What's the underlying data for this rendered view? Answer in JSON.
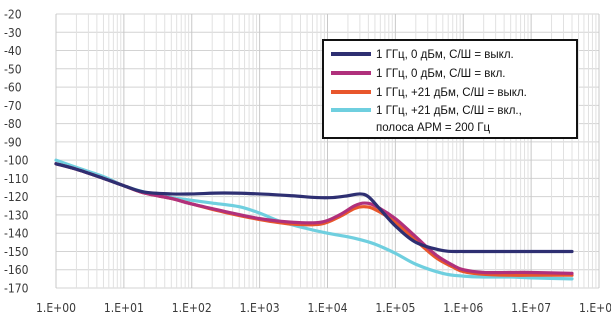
{
  "chart_data": {
    "type": "line",
    "title": "",
    "xlabel": "",
    "ylabel": "",
    "x_scale": "log",
    "xlim": [
      1,
      100000000
    ],
    "ylim": [
      -170,
      -20
    ],
    "grid": true,
    "legend_position": "top-right",
    "x_ticks": [
      1,
      10,
      100,
      1000,
      10000,
      100000,
      1000000,
      10000000,
      100000000
    ],
    "x_tick_labels": [
      "1.E+00",
      "1.E+01",
      "1.E+02",
      "1.E+03",
      "1.E+04",
      "1.E+05",
      "1.E+06",
      "1.E+07",
      "1.E+08"
    ],
    "y_ticks": [
      -20,
      -30,
      -40,
      -50,
      -60,
      -70,
      -80,
      -90,
      -100,
      -110,
      -120,
      -130,
      -140,
      -150,
      -160,
      -170
    ],
    "y_tick_labels": [
      "-20",
      "-30",
      "-40",
      "-50",
      "-60",
      "-70",
      "-80",
      "-90",
      "-100",
      "-110",
      "-120",
      "-130",
      "-140",
      "-150",
      "-160",
      "-170"
    ],
    "series": [
      {
        "name": "1 ГГц, 0 дБм, С/Ш = выкл.",
        "color": "#2e2f72",
        "x": [
          1,
          2,
          5,
          10,
          20,
          50,
          100,
          300,
          1000,
          3000,
          7000,
          12000,
          20000,
          30000,
          40000,
          60000,
          100000,
          200000,
          500000,
          1000000,
          2000000,
          5000000,
          10000000,
          40000000
        ],
        "y": [
          -102,
          -105,
          -110,
          -114,
          -117.5,
          -118.5,
          -118.5,
          -118,
          -118.5,
          -119.5,
          -120.5,
          -120.5,
          -119.5,
          -118.5,
          -120,
          -127,
          -136,
          -145,
          -149.5,
          -150,
          -150,
          -150,
          -150,
          -150
        ]
      },
      {
        "name": "1 ГГц, 0 дБм, С/Ш = вкл.",
        "color": "#b0307c",
        "x": [
          1,
          2,
          5,
          10,
          20,
          50,
          100,
          300,
          1000,
          3000,
          8000,
          15000,
          25000,
          35000,
          50000,
          100000,
          200000,
          400000,
          700000,
          1000000,
          2000000,
          5000000,
          10000000,
          40000000
        ],
        "y": [
          -102,
          -105,
          -110,
          -114,
          -118,
          -121,
          -124,
          -128,
          -132,
          -134,
          -134,
          -130,
          -125,
          -123.5,
          -125,
          -132,
          -142,
          -152,
          -157.5,
          -160,
          -161.5,
          -161.5,
          -161.5,
          -162
        ]
      },
      {
        "name": "1 ГГц, +21 дБм, С/Ш  = выкл.",
        "color": "#e8562c",
        "x": [
          1,
          2,
          5,
          10,
          20,
          50,
          100,
          300,
          1000,
          3000,
          8000,
          15000,
          25000,
          35000,
          50000,
          100000,
          200000,
          400000,
          700000,
          1000000,
          2000000,
          5000000,
          10000000,
          40000000
        ],
        "y": [
          -102,
          -105,
          -110,
          -114,
          -118,
          -121,
          -124,
          -128.5,
          -132.5,
          -135,
          -135,
          -131,
          -126.5,
          -125.5,
          -127,
          -134,
          -144,
          -153.5,
          -158.5,
          -161,
          -162.5,
          -163,
          -163,
          -163
        ]
      },
      {
        "name": "1 ГГц, +21 дБм, С/Ш  = вкл., полоса АРМ = 200 Гц",
        "color": "#6fcfdf",
        "x": [
          1,
          2,
          5,
          10,
          20,
          50,
          100,
          200,
          500,
          1000,
          2000,
          5000,
          10000,
          20000,
          30000,
          50000,
          100000,
          200000,
          500000,
          1000000,
          2000000,
          5000000,
          10000000,
          40000000
        ],
        "y": [
          -100,
          -104,
          -109,
          -114,
          -117.5,
          -120.5,
          -122,
          -123.5,
          -125.5,
          -129,
          -133.5,
          -137.5,
          -140,
          -142,
          -143.5,
          -146,
          -151,
          -157,
          -162,
          -163.5,
          -164,
          -164,
          -164.5,
          -165
        ]
      }
    ]
  }
}
